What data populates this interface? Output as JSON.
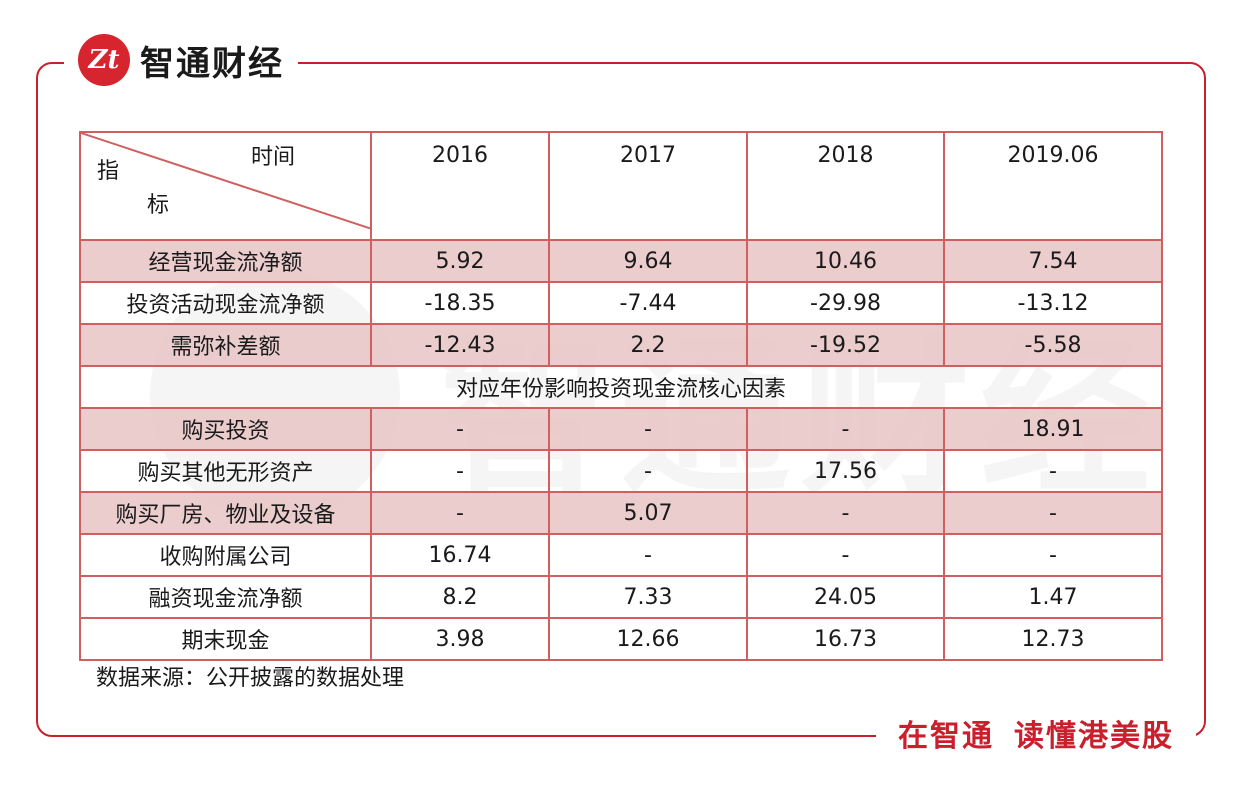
{
  "brand": {
    "logo_glyph": "Zt",
    "name": "智通财经",
    "slogan_part1": "在智通",
    "slogan_part2": "读懂港美股"
  },
  "colors": {
    "brand_red": "#c8202c",
    "row_highlight": "#e7c4c4"
  },
  "table": {
    "header": {
      "time_label": "时间",
      "indicator_top": "指",
      "indicator_bottom": "标",
      "years": [
        "2016",
        "2017",
        "2018",
        "2019.06"
      ]
    },
    "rows_top": [
      {
        "label": "经营现金流净额",
        "values": [
          "5.92",
          "9.64",
          "10.46",
          "7.54"
        ]
      },
      {
        "label": "投资活动现金流净额",
        "values": [
          "-18.35",
          "-7.44",
          "-29.98",
          "-13.12"
        ]
      },
      {
        "label": "需弥补差额",
        "values": [
          "-12.43",
          "2.2",
          "-19.52",
          "-5.58"
        ]
      }
    ],
    "section_title": "对应年份影响投资现金流核心因素",
    "rows_bottom": [
      {
        "label": "购买投资",
        "values": [
          "-",
          "-",
          "-",
          "18.91"
        ]
      },
      {
        "label": "购买其他无形资产",
        "values": [
          "-",
          "-",
          "17.56",
          "-"
        ]
      },
      {
        "label": "购买厂房、物业及设备",
        "values": [
          "-",
          "5.07",
          "-",
          "-"
        ]
      },
      {
        "label": "收购附属公司",
        "values": [
          "16.74",
          "-",
          "-",
          "-"
        ]
      },
      {
        "label": "融资现金流净额",
        "values": [
          "8.2",
          "7.33",
          "24.05",
          "1.47"
        ]
      },
      {
        "label": "期末现金",
        "values": [
          "3.98",
          "12.66",
          "16.73",
          "12.73"
        ]
      }
    ]
  },
  "source_note": "数据来源：公开披露的数据处理"
}
